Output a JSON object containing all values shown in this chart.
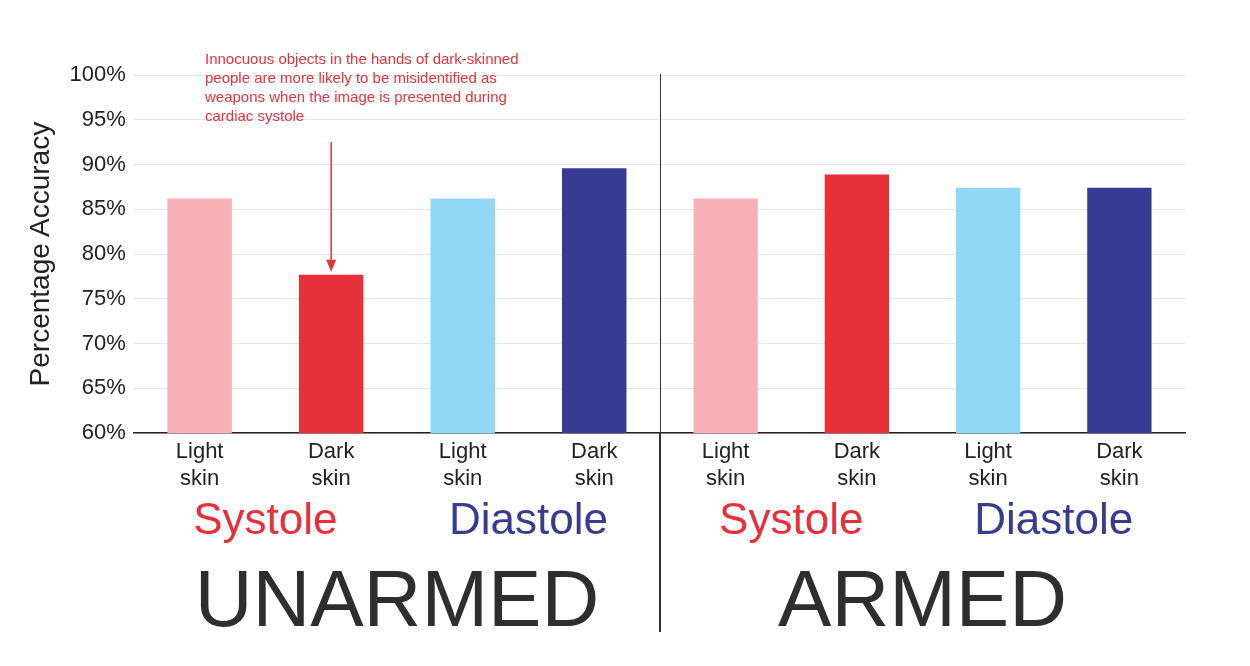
{
  "chart_data": [
    {
      "type": "bar",
      "ylabel": "Percentage Accuracy",
      "categories": [
        "Light skin",
        "Dark skin",
        "Light skin",
        "Dark skin"
      ],
      "values": [
        86.2,
        77.7,
        86.2,
        89.6
      ],
      "colors": [
        "#f7b0b4",
        "#e8303a",
        "#90d8f5",
        "#383b92"
      ],
      "ylim": [
        60,
        100
      ],
      "yticks": [
        {
          "value": 60,
          "label": "60%"
        },
        {
          "value": 65,
          "label": "65%"
        },
        {
          "value": 70,
          "label": "70%"
        },
        {
          "value": 75,
          "label": "75%"
        },
        {
          "value": 80,
          "label": "80%"
        },
        {
          "value": 85,
          "label": "85%"
        },
        {
          "value": 90,
          "label": "90%"
        },
        {
          "value": 95,
          "label": "95%"
        },
        {
          "value": 100,
          "label": "100%"
        }
      ],
      "grid": "y",
      "legend": false,
      "annotations": [
        "Innocuous objects in the hands of dark-skinned people are more likely to be misidentified as weapons when the image is presented during cardiac systole",
        "Systole",
        "Diastole",
        "UNARMED"
      ]
    },
    {
      "type": "bar",
      "categories": [
        "Light skin",
        "Dark skin",
        "Light skin",
        "Dark skin"
      ],
      "values": [
        86.2,
        88.9,
        87.4,
        87.4
      ],
      "colors": [
        "#f7b0b4",
        "#e8303a",
        "#90d8f5",
        "#383b92"
      ],
      "ylim": [
        60,
        100
      ],
      "yticks": [
        {
          "value": 60,
          "label": null
        },
        {
          "value": 65,
          "label": null
        },
        {
          "value": 70,
          "label": null
        },
        {
          "value": 75,
          "label": null
        },
        {
          "value": 80,
          "label": null
        },
        {
          "value": 85,
          "label": null
        },
        {
          "value": 90,
          "label": null
        },
        {
          "value": 95,
          "label": null
        },
        {
          "value": 100,
          "label": null
        }
      ],
      "grid": "y",
      "legend": false,
      "tick_labels": "x",
      "annotations": [
        "Systole",
        "Diastole",
        "ARMED"
      ]
    }
  ]
}
